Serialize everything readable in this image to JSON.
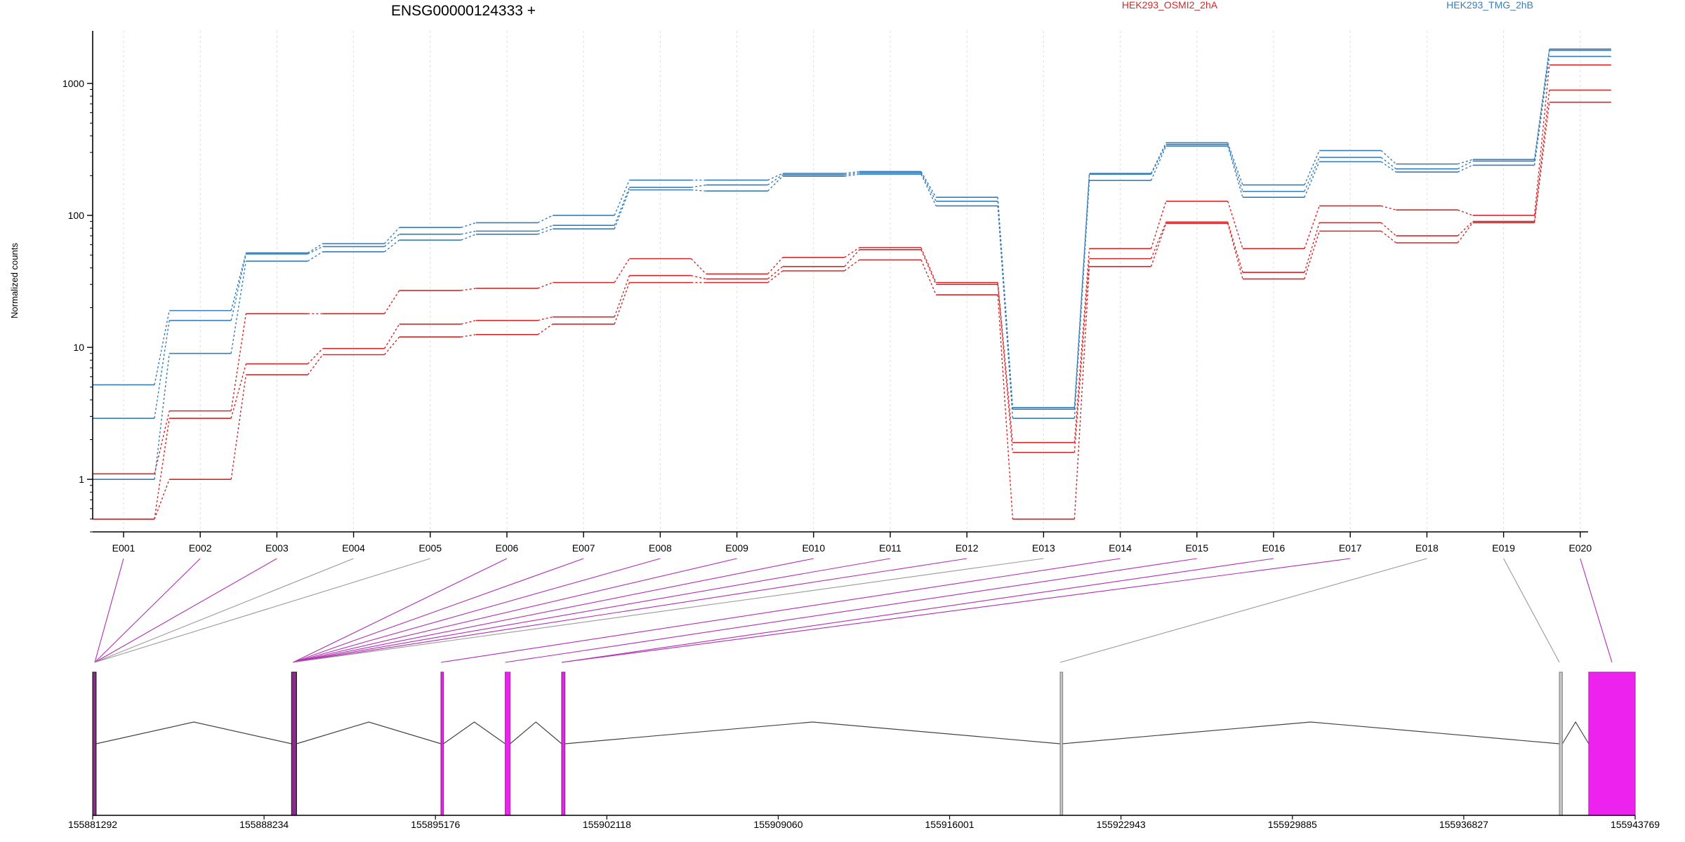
{
  "title": "ENSG00000124333 +",
  "legend": [
    {
      "label": "HEK293_OSMI2_2hA",
      "color": "#d62728"
    },
    {
      "label": "HEK293_TMG_2hB",
      "color": "#377eb8"
    }
  ],
  "chart_data": {
    "type": "line",
    "title": "ENSG00000124333 +",
    "xlabel": "",
    "ylabel": "Normalized counts",
    "yscale": "log",
    "ylim": [
      0.4,
      2500
    ],
    "yticks": [
      1,
      10,
      100,
      1000
    ],
    "ytick_labels": [
      "1",
      "10",
      "100",
      "1000"
    ],
    "categories": [
      "E001",
      "E002",
      "E003",
      "E004",
      "E005",
      "E006",
      "E007",
      "E008",
      "E009",
      "E010",
      "E011",
      "E012",
      "E013",
      "E014",
      "E015",
      "E016",
      "E017",
      "E018",
      "E019",
      "E020"
    ],
    "grid": "vertical dotted at exon centers",
    "legend_placement": "top",
    "series": [
      {
        "group": "HEK293_TMG_2hB",
        "color": "#377eb8",
        "values": [
          5.2,
          19,
          52,
          61,
          81,
          88,
          100,
          185,
          185,
          208,
          215,
          137,
          3.5,
          208,
          355,
          170,
          310,
          245,
          265,
          1820
        ]
      },
      {
        "group": "HEK293_TMG_2hB",
        "color": "#377eb8",
        "values": [
          2.9,
          16,
          51,
          58,
          72,
          76,
          84,
          163,
          170,
          203,
          210,
          128,
          3.4,
          205,
          345,
          152,
          275,
          225,
          258,
          1780
        ]
      },
      {
        "group": "HEK293_TMG_2hB",
        "color": "#377eb8",
        "values": [
          1.0,
          9,
          45,
          53,
          65,
          72,
          79,
          156,
          153,
          198,
          205,
          118,
          2.9,
          184,
          335,
          137,
          255,
          213,
          240,
          1600
        ]
      },
      {
        "group": "HEK293_OSMI2_2hA",
        "color": "#d62728",
        "values": [
          1.1,
          3.3,
          18,
          18,
          27,
          28,
          31,
          47,
          36,
          48,
          57,
          31,
          1.9,
          56,
          128,
          56,
          118,
          110,
          100,
          1380
        ]
      },
      {
        "group": "HEK293_OSMI2_2hA",
        "color": "#d62728",
        "values": [
          0.5,
          2.9,
          7.5,
          9.8,
          15,
          16,
          17,
          35,
          33,
          41,
          55,
          30,
          1.6,
          47,
          89,
          37,
          88,
          70,
          90,
          890
        ]
      },
      {
        "group": "HEK293_OSMI2_2hA",
        "color": "#d62728",
        "values": [
          0.5,
          1.0,
          6.2,
          8.8,
          12,
          12.5,
          15,
          31,
          31,
          38,
          46,
          25,
          0.5,
          41,
          87,
          33,
          76,
          62,
          88,
          720
        ]
      }
    ],
    "gene_model": {
      "coordinate_ticks": [
        "155881292",
        "155888234",
        "155895176",
        "155902118",
        "155909060",
        "155916001",
        "155922943",
        "155929885",
        "155936827",
        "155943769"
      ],
      "coordinate_range": [
        155881292,
        155943769
      ],
      "exon_colors": {
        "significant": "#b22db2",
        "not_significant": "#999999",
        "fill_sig": "#ee22ee",
        "fill_nonsig": "#c8c8c8"
      },
      "exon_significance": [
        "sig",
        "sig",
        "sig",
        "nonsig",
        "nonsig",
        "sig",
        "sig",
        "sig",
        "sig",
        "sig",
        "sig",
        "sig",
        "nonsig",
        "sig",
        "sig",
        "sig",
        "sig",
        "nonsig",
        "nonsig",
        "sig"
      ]
    }
  }
}
